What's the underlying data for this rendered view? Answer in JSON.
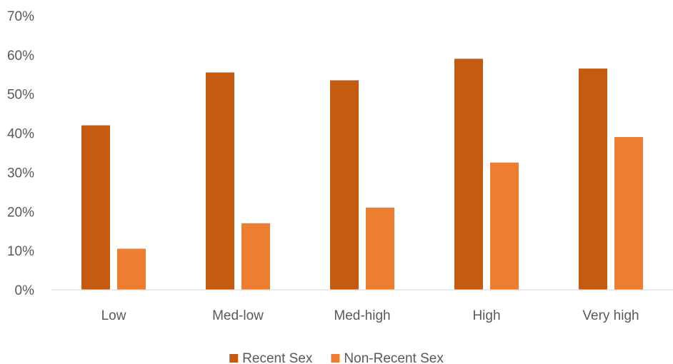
{
  "chart_data": {
    "type": "bar",
    "title": "",
    "xlabel": "",
    "ylabel": "",
    "categories": [
      "Low",
      "Med-low",
      "Med-high",
      "High",
      "Very high"
    ],
    "series": [
      {
        "name": "Recent Sex",
        "color": "#C55A11",
        "values": [
          42,
          55.5,
          53.5,
          59,
          56.5
        ]
      },
      {
        "name": "Non-Recent Sex",
        "color": "#ED7D31",
        "values": [
          10.5,
          17,
          21,
          32.5,
          39
        ]
      }
    ],
    "ylim": [
      0,
      70
    ],
    "yticks": [
      0,
      10,
      20,
      30,
      40,
      50,
      60,
      70
    ],
    "ytick_labels": [
      "0%",
      "10%",
      "20%",
      "30%",
      "40%",
      "50%",
      "60%",
      "70%"
    ],
    "grid": false,
    "legend_position": "bottom"
  }
}
